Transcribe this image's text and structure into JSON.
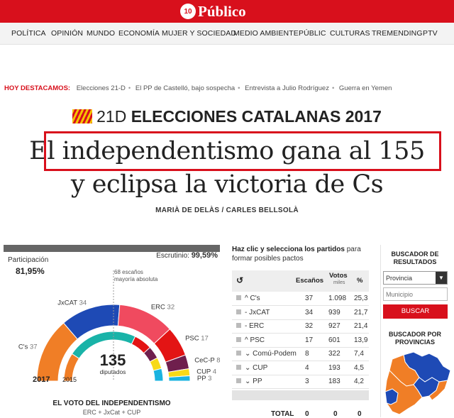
{
  "site": {
    "logo_badge": "10",
    "logo_name": "Público",
    "brand_color": "#d8101c"
  },
  "nav": [
    "POLÍTICA",
    "OPINIÓN",
    "MUNDO",
    "ECONOMÍA",
    "MUJER Y SOCIEDAD",
    "MEDIO AMBIENTE",
    "PÚBLIC",
    "CULTURAS",
    "TREMENDING",
    "PTV"
  ],
  "highlights": {
    "label": "HOY DESTACAMOS:",
    "items": [
      "Elecciones 21-D",
      "El PP de Castelló, bajo sospecha",
      "Entrevista a Julio Rodríguez",
      "Guerra en Yemen"
    ]
  },
  "article": {
    "kicker_a": "21D",
    "kicker_b": "ELECCIONES CATALANAS 2017",
    "headline_1": "El independentismo gana al 155",
    "headline_2": "y eclipsa la victoria de Cs",
    "byline": "MARIÀ DE DELÀS / CARLES BELLSOLÀ"
  },
  "results": {
    "participacion_label": "Participación",
    "participacion_value": "81,95%",
    "escrutinio_label": "Escrutinio:",
    "escrutinio_value": "99,59%",
    "majority_line1": "68 escaños",
    "majority_line2": "mayoría absoluta",
    "center_value": "135",
    "center_label": "diputados",
    "year_outer": "2017",
    "year_inner": "2015",
    "parties_2017": [
      {
        "label": "C's",
        "seats": 37,
        "color": "#f07e26"
      },
      {
        "label": "JxCAT",
        "seats": 34,
        "color": "#1e4ab5"
      },
      {
        "label": "ERC",
        "seats": 32,
        "color": "#f04a5f"
      },
      {
        "label": "PSC",
        "seats": 17,
        "color": "#e31414"
      },
      {
        "label": "CeC-P",
        "seats": 8,
        "color": "#6f1f4d"
      },
      {
        "label": "CUP",
        "seats": 4,
        "color": "#f7d917"
      },
      {
        "label": "PP",
        "seats": 3,
        "color": "#1ab3e0"
      }
    ],
    "inner_2015": [
      {
        "seats": 25,
        "color": "#f07e26"
      },
      {
        "seats": 62,
        "color": "#19b3a8"
      },
      {
        "seats": 16,
        "color": "#e31414"
      },
      {
        "seats": 11,
        "color": "#6f1f4d"
      },
      {
        "seats": 10,
        "color": "#f7d917"
      },
      {
        "seats": 11,
        "color": "#1ab3e0"
      }
    ],
    "vote_title": "EL VOTO DEL INDEPENDENTISMO",
    "vote_sub": "ERC + JxCat + CUP"
  },
  "table": {
    "intro_bold": "Haz clic y selecciona los partidos",
    "intro_rest": " para formar posibles pactos",
    "reset_icon": "↺",
    "col_escanos": "Escaños",
    "col_votos": "Votos",
    "col_votos_sub": "miles",
    "col_pct": "%",
    "rows": [
      {
        "trend": "^",
        "party": "C's",
        "escanos": "37",
        "votos": "1.098",
        "pct": "25,3"
      },
      {
        "trend": "-",
        "party": "JxCAT",
        "escanos": "34",
        "votos": "939",
        "pct": "21,7"
      },
      {
        "trend": "-",
        "party": "ERC",
        "escanos": "32",
        "votos": "927",
        "pct": "21,4"
      },
      {
        "trend": "^",
        "party": "PSC",
        "escanos": "17",
        "votos": "601",
        "pct": "13,9"
      },
      {
        "trend": "v",
        "party": "Comú-Podem",
        "escanos": "8",
        "votos": "322",
        "pct": "7,4"
      },
      {
        "trend": "v",
        "party": "CUP",
        "escanos": "4",
        "votos": "193",
        "pct": "4,5"
      },
      {
        "trend": "v",
        "party": "PP",
        "escanos": "3",
        "votos": "183",
        "pct": "4,2"
      }
    ],
    "total_label": "TOTAL",
    "total_escanos": "0",
    "total_votos": "0",
    "total_pct": "0"
  },
  "side": {
    "finder_title_1": "BUSCADOR DE",
    "finder_title_2": "RESULTADOS",
    "select_value": "Provincia",
    "input_placeholder": "Municipio",
    "search_button": "BUSCAR",
    "prov_title_1": "BUSCADOR POR",
    "prov_title_2": "PROVINCIAS"
  }
}
